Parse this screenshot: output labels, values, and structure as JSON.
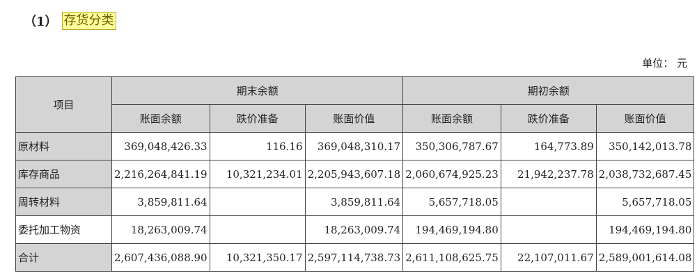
{
  "title": {
    "prefix": "（1）",
    "text": "存货分类"
  },
  "unit": "单位：  元",
  "table": {
    "item_header": "项目",
    "groups": [
      "期末余额",
      "期初余额"
    ],
    "subheaders": [
      "账面余额",
      "跌价准备",
      "账面价值",
      "账面余额",
      "跌价准备",
      "账面价值"
    ],
    "rows": [
      {
        "label": "原材料",
        "values": [
          "369,048,426.33",
          "116.16",
          "369,048,310.17",
          "350,306,787.67",
          "164,773.89",
          "350,142,013.78"
        ]
      },
      {
        "label": "库存商品",
        "values": [
          "2,216,264,841.19",
          "10,321,234.01",
          "2,205,943,607.18",
          "2,060,674,925.23",
          "21,942,237.78",
          "2,038,732,687.45"
        ]
      },
      {
        "label": "周转材料",
        "values": [
          "3,859,811.64",
          "",
          "3,859,811.64",
          "5,657,718.05",
          "",
          "5,657,718.05"
        ]
      },
      {
        "label": "委托加工物资",
        "values": [
          "18,263,009.74",
          "",
          "18,263,009.74",
          "194,469,194.80",
          "",
          "194,469,194.80"
        ]
      },
      {
        "label": "合计",
        "values": [
          "2,607,436,088.90",
          "10,321,350.17",
          "2,597,114,738.73",
          "2,611,108,625.75",
          "22,107,011.67",
          "2,589,001,614.08"
        ]
      }
    ]
  }
}
